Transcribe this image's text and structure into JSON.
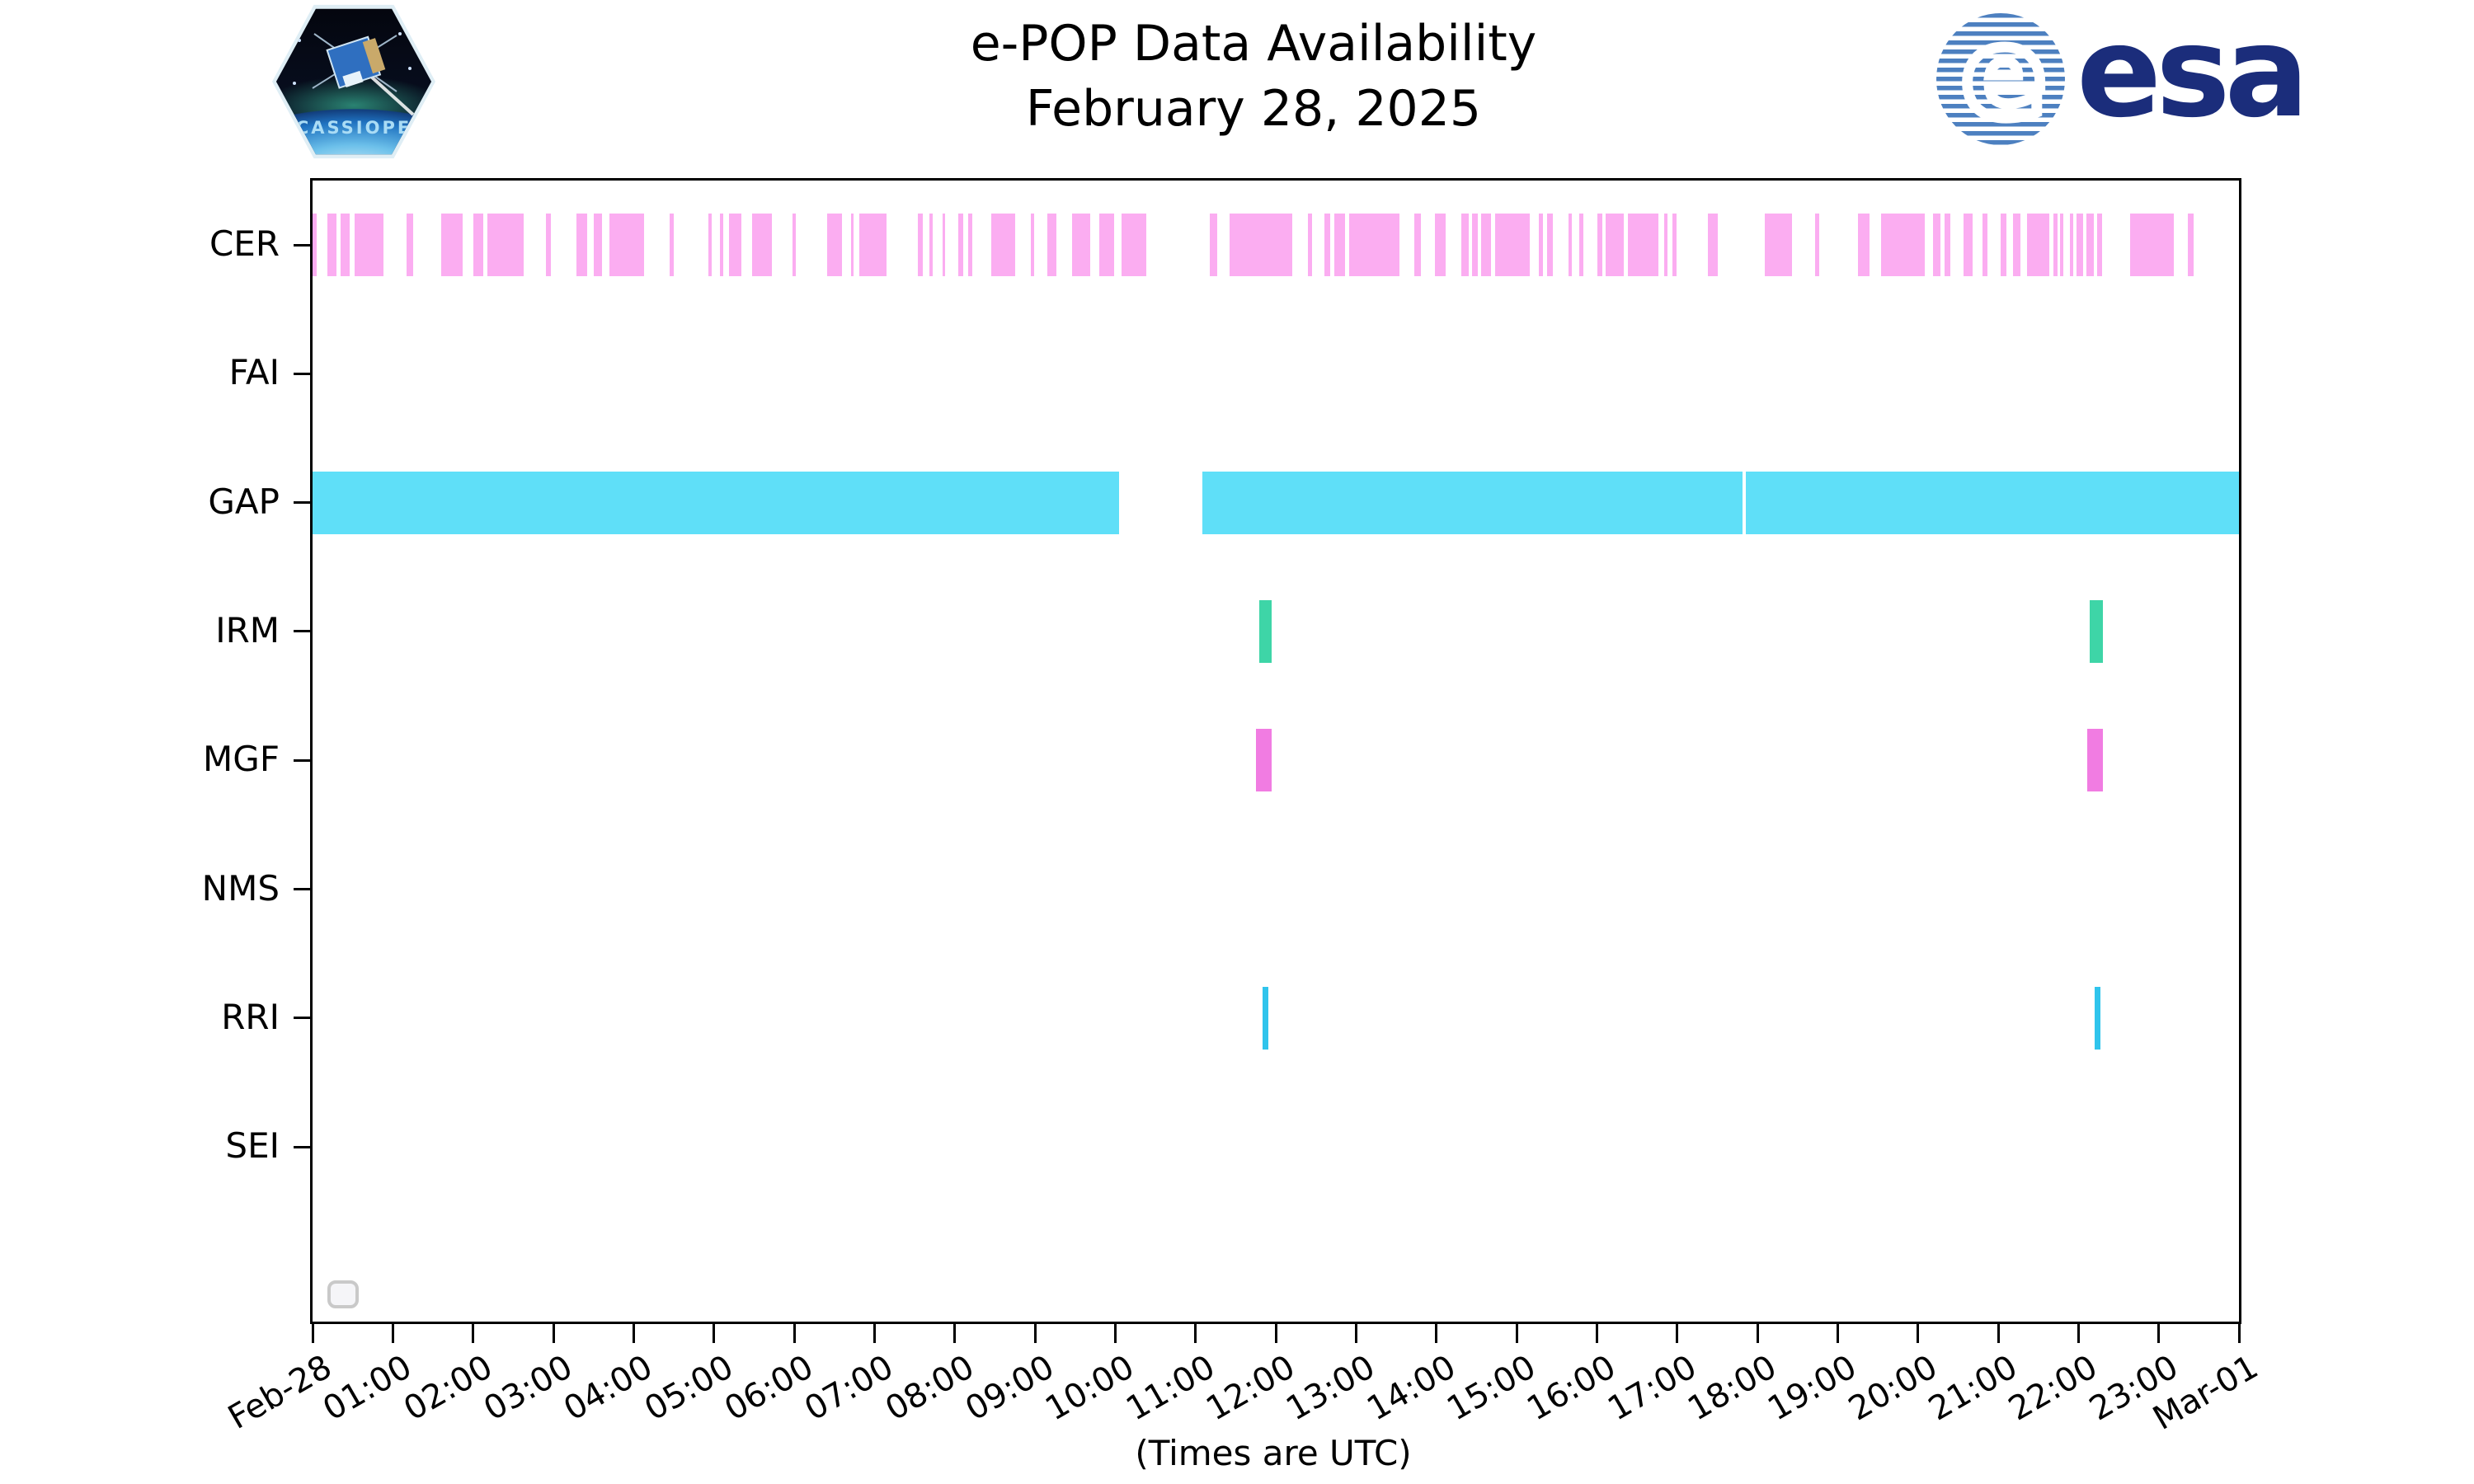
{
  "header": {
    "title": "e-POP Data Availability",
    "subtitle": "February 28, 2025",
    "esa_wordmark": "esa",
    "esa_globe_letter": "e",
    "cassiope_label": "CASSIOPE"
  },
  "chart_data": {
    "type": "bar",
    "subtype": "timeline-availability-broken-bars",
    "title": "e-POP Data Availability",
    "subtitle": "February 28, 2025",
    "xlabel": "(Times are UTC)",
    "grid": false,
    "legend": {
      "present": true,
      "entries": [],
      "position": "lower-left",
      "empty": true
    },
    "x_axis": {
      "start": "Feb-28 00:00 UTC",
      "end": "Mar-01 00:00 UTC",
      "range_hours": [
        0,
        24
      ],
      "tick_interval_hours": 1,
      "tick_labels": [
        "Feb-28",
        "01:00",
        "02:00",
        "03:00",
        "04:00",
        "05:00",
        "06:00",
        "07:00",
        "08:00",
        "09:00",
        "10:00",
        "11:00",
        "12:00",
        "13:00",
        "14:00",
        "15:00",
        "16:00",
        "17:00",
        "18:00",
        "19:00",
        "20:00",
        "21:00",
        "22:00",
        "23:00",
        "Mar-01"
      ]
    },
    "y_axis": {
      "categories": [
        "CER",
        "FAI",
        "GAP",
        "IRM",
        "MGF",
        "NMS",
        "RRI",
        "SEI"
      ]
    },
    "rows": [
      {
        "label": "CER",
        "color": "#fbadf1",
        "intervals": [
          [
            0.0,
            0.05
          ],
          [
            0.18,
            0.3
          ],
          [
            0.35,
            0.46
          ],
          [
            0.52,
            0.88
          ],
          [
            1.17,
            1.25
          ],
          [
            1.6,
            1.87
          ],
          [
            2.0,
            2.13
          ],
          [
            2.18,
            2.63
          ],
          [
            2.91,
            2.97
          ],
          [
            3.29,
            3.42
          ],
          [
            3.5,
            3.61
          ],
          [
            3.7,
            4.13
          ],
          [
            4.45,
            4.5
          ],
          [
            4.93,
            4.97
          ],
          [
            5.08,
            5.12
          ],
          [
            5.19,
            5.34
          ],
          [
            5.48,
            5.72
          ],
          [
            5.98,
            6.02
          ],
          [
            6.41,
            6.6
          ],
          [
            6.71,
            6.74
          ],
          [
            6.81,
            7.15
          ],
          [
            7.54,
            7.6
          ],
          [
            7.68,
            7.73
          ],
          [
            7.85,
            7.88
          ],
          [
            8.04,
            8.11
          ],
          [
            8.17,
            8.22
          ],
          [
            8.46,
            8.75
          ],
          [
            8.95,
            8.99
          ],
          [
            9.15,
            9.27
          ],
          [
            9.46,
            9.69
          ],
          [
            9.8,
            9.99
          ],
          [
            10.08,
            10.39
          ],
          [
            11.18,
            11.27
          ],
          [
            11.42,
            12.21
          ],
          [
            12.4,
            12.45
          ],
          [
            12.61,
            12.68
          ],
          [
            12.73,
            12.86
          ],
          [
            12.91,
            13.54
          ],
          [
            13.73,
            13.81
          ],
          [
            13.98,
            14.12
          ],
          [
            14.31,
            14.4
          ],
          [
            14.45,
            14.52
          ],
          [
            14.56,
            14.68
          ],
          [
            14.73,
            15.16
          ],
          [
            15.28,
            15.33
          ],
          [
            15.38,
            15.45
          ],
          [
            15.65,
            15.69
          ],
          [
            15.78,
            15.83
          ],
          [
            16.01,
            16.07
          ],
          [
            16.11,
            16.34
          ],
          [
            16.39,
            16.77
          ],
          [
            16.84,
            16.88
          ],
          [
            16.94,
            16.99
          ],
          [
            17.38,
            17.51
          ],
          [
            18.09,
            18.43
          ],
          [
            18.72,
            18.77
          ],
          [
            19.25,
            19.4
          ],
          [
            19.54,
            20.09
          ],
          [
            20.19,
            20.28
          ],
          [
            20.33,
            20.4
          ],
          [
            20.57,
            20.68
          ],
          [
            20.8,
            20.87
          ],
          [
            21.03,
            21.1
          ],
          [
            21.18,
            21.28
          ],
          [
            21.36,
            21.64
          ],
          [
            21.69,
            21.74
          ],
          [
            21.77,
            21.81
          ],
          [
            21.89,
            21.93
          ],
          [
            21.98,
            22.06
          ],
          [
            22.1,
            22.19
          ],
          [
            22.23,
            22.29
          ],
          [
            22.64,
            23.19
          ],
          [
            23.36,
            23.43
          ]
        ]
      },
      {
        "label": "FAI",
        "color": "#cccccc",
        "intervals": []
      },
      {
        "label": "GAP",
        "color": "#5fdff8",
        "intervals": [
          [
            0.0,
            10.05
          ],
          [
            11.09,
            17.81
          ],
          [
            17.86,
            24.0
          ]
        ]
      },
      {
        "label": "IRM",
        "color": "#3ed5a7",
        "intervals": [
          [
            11.79,
            11.95
          ],
          [
            22.14,
            22.31
          ]
        ]
      },
      {
        "label": "MGF",
        "color": "#f17ce2",
        "intervals": [
          [
            11.75,
            11.95
          ],
          [
            22.11,
            22.31
          ]
        ]
      },
      {
        "label": "NMS",
        "color": "#cccccc",
        "intervals": []
      },
      {
        "label": "RRI",
        "color": "#30c4ec",
        "intervals": [
          [
            11.84,
            11.91
          ],
          [
            22.2,
            22.27
          ]
        ]
      },
      {
        "label": "SEI",
        "color": "#cccccc",
        "intervals": []
      }
    ]
  },
  "colors": {
    "axis": "#000000",
    "background": "#ffffff",
    "cer_pink": "#fbadf1",
    "gap_cyan": "#5fdff8",
    "irm_green": "#3ed5a7",
    "mgf_orchid": "#f17ce2",
    "rri_blue": "#30c4ec",
    "legend_border": "#c9c9c9",
    "esa_blue": "#1b2d7b",
    "esa_stripe_blue": "#4d80c0",
    "cassiope_text_blue": "#aadcf5"
  }
}
